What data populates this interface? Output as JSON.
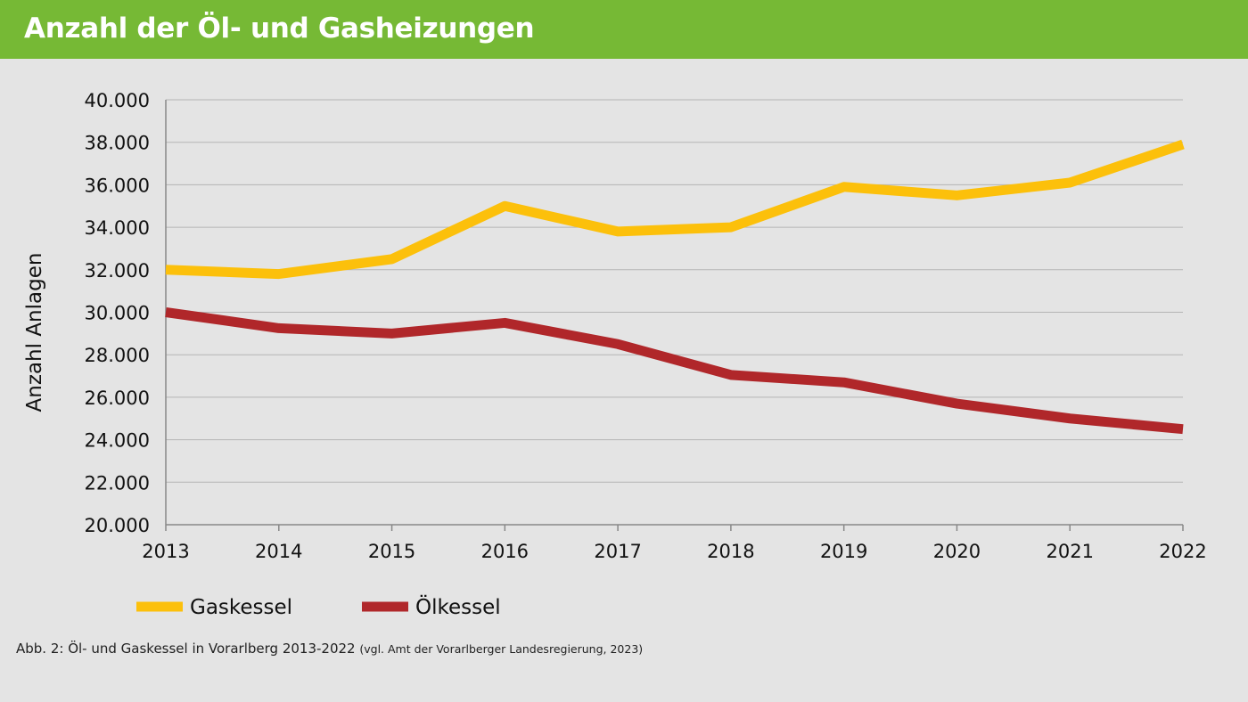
{
  "header": {
    "title": "Anzahl der Öl- und Gasheizungen"
  },
  "caption": {
    "main": "Abb. 2: Öl- und Gaskessel in Vorarlberg 2013-2022",
    "source": "(vgl. Amt der Vorarlberger Landesregierung, 2023)"
  },
  "chart_data": {
    "type": "line",
    "title": "Anzahl der Öl- und Gasheizungen",
    "xlabel": "",
    "ylabel": "Anzahl Anlagen",
    "ylim": [
      20000,
      40000
    ],
    "yticks": [
      "20.000",
      "22.000",
      "24.000",
      "26.000",
      "28.000",
      "30.000",
      "32.000",
      "34.000",
      "36.000",
      "38.000",
      "40.000"
    ],
    "categories": [
      "2013",
      "2014",
      "2015",
      "2016",
      "2017",
      "2018",
      "2019",
      "2020",
      "2021",
      "2022"
    ],
    "grid": true,
    "legend": "bottom-left",
    "series": [
      {
        "name": "Gaskessel",
        "color": "#fcc00b",
        "values": [
          32000,
          31800,
          32500,
          35000,
          33800,
          34000,
          35900,
          35500,
          36100,
          37900
        ]
      },
      {
        "name": "Ölkessel",
        "color": "#b0272a",
        "values": [
          30000,
          29250,
          29000,
          29500,
          28500,
          27050,
          26700,
          25700,
          25000,
          24500
        ]
      }
    ]
  }
}
